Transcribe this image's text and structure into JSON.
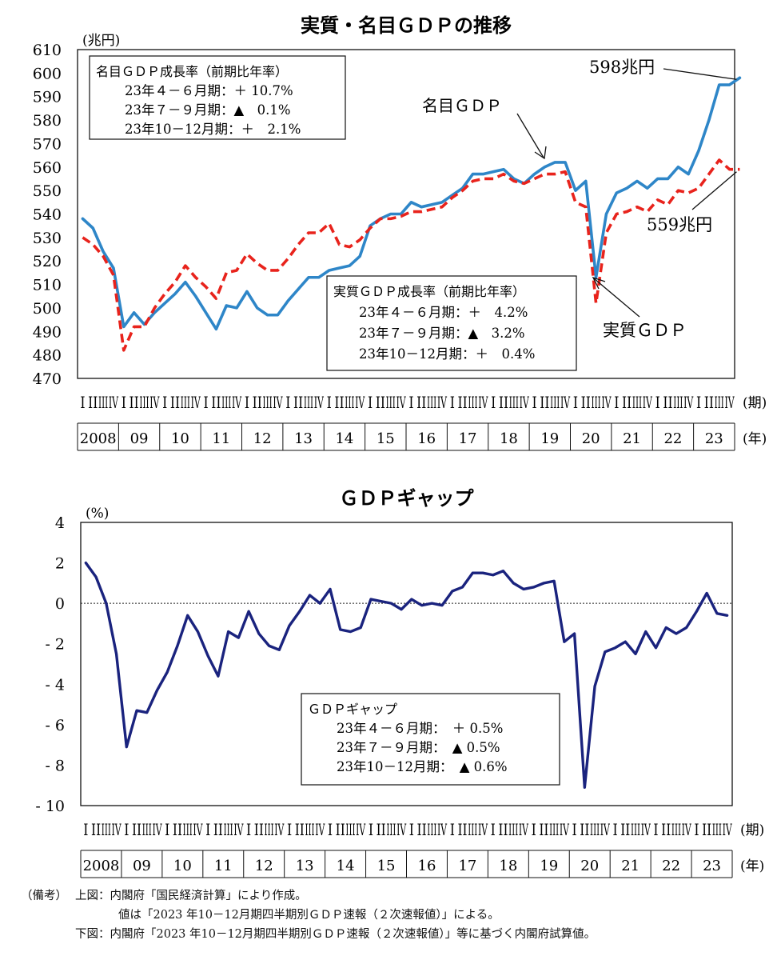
{
  "chart_data": [
    {
      "type": "line",
      "title": "実質・名目ＧＤＰの推移",
      "ylabel": "(兆円)",
      "ylim": [
        470,
        610
      ],
      "yticks": [
        470,
        480,
        490,
        500,
        510,
        520,
        530,
        540,
        550,
        560,
        570,
        580,
        590,
        600,
        610
      ],
      "quarter_row_unit": "(期)",
      "year_row_unit": "(年)",
      "quarter_labels": [
        "I",
        "II",
        "III",
        "IV"
      ],
      "years": [
        "2008",
        "09",
        "10",
        "11",
        "12",
        "13",
        "14",
        "15",
        "16",
        "17",
        "18",
        "19",
        "20",
        "21",
        "22",
        "23"
      ],
      "series": [
        {
          "name": "名目ＧＤＰ",
          "color": "#2e86c8",
          "style": "solid",
          "values": [
            538,
            534,
            524,
            517,
            492,
            498,
            493,
            498,
            502,
            506,
            511,
            505,
            498,
            491,
            501,
            500,
            507,
            500,
            497,
            497,
            503,
            508,
            513,
            513,
            516,
            517,
            518,
            522,
            535,
            538,
            540,
            540,
            545,
            543,
            544,
            545,
            548,
            551,
            557,
            557,
            558,
            559,
            555,
            553,
            557,
            560,
            562,
            562,
            550,
            554,
            513,
            540,
            549,
            551,
            554,
            551,
            555,
            555,
            560,
            557,
            567,
            580,
            595,
            595,
            598
          ]
        },
        {
          "name": "実質ＧＤＰ",
          "color": "#e8231c",
          "style": "dashed",
          "values": [
            530,
            527,
            522,
            514,
            482,
            492,
            492,
            500,
            506,
            511,
            518,
            513,
            509,
            504,
            515,
            516,
            523,
            519,
            516,
            516,
            521,
            527,
            532,
            532,
            536,
            527,
            526,
            529,
            534,
            538,
            538,
            539,
            541,
            541,
            542,
            543,
            547,
            550,
            554,
            555,
            555,
            557,
            554,
            553,
            555,
            557,
            557,
            558,
            545,
            543,
            502,
            532,
            540,
            541,
            543,
            541,
            546,
            544,
            550,
            549,
            551,
            557,
            563,
            559,
            559
          ]
        }
      ],
      "annotations": [
        {
          "key": "nominal_end",
          "text": "598兆円"
        },
        {
          "key": "nominal_line",
          "text": "名目ＧＤＰ"
        },
        {
          "key": "real_end",
          "text": "559兆円"
        },
        {
          "key": "real_line",
          "text": "実質ＧＤＰ"
        }
      ],
      "legend_boxes": [
        {
          "key": "nominal",
          "header": "名目ＧＤＰ成長率（前期比年率）",
          "rows": [
            "23年４－６月期：＋ 10.7%",
            "23年７－９月期：▲　0.1%",
            "23年10－12月期：＋　2.1%"
          ]
        },
        {
          "key": "real",
          "header": "実質ＧＤＰ成長率（前期比年率）",
          "rows": [
            "23年４－６月期：＋　4.2%",
            "23年７－９月期：▲　3.2%",
            "23年10－12月期：＋　0.4%"
          ]
        }
      ]
    },
    {
      "type": "line",
      "title": "ＧＤＰギャップ",
      "ylabel": "(%)",
      "ylim": [
        -10,
        4
      ],
      "yticks": [
        -10,
        -8,
        -6,
        -4,
        -2,
        0,
        2,
        4
      ],
      "ytick_labels": [
        "- 10",
        "- 8",
        "- 6",
        "- 4",
        "- 2",
        "0",
        "2",
        "4"
      ],
      "quarter_row_unit": "(期)",
      "year_row_unit": "(年)",
      "quarter_labels": [
        "I",
        "II",
        "III",
        "IV"
      ],
      "years": [
        "2008",
        "09",
        "10",
        "11",
        "12",
        "13",
        "14",
        "15",
        "16",
        "17",
        "18",
        "19",
        "20",
        "21",
        "22",
        "23"
      ],
      "series": [
        {
          "color": "#1a237e",
          "values": [
            2.0,
            1.3,
            0.0,
            -2.5,
            -7.1,
            -5.3,
            -5.4,
            -4.3,
            -3.4,
            -2.1,
            -0.6,
            -1.4,
            -2.6,
            -3.6,
            -1.4,
            -1.7,
            -0.4,
            -1.5,
            -2.1,
            -2.3,
            -1.1,
            -0.4,
            0.4,
            0.0,
            0.7,
            -1.3,
            -1.4,
            -1.2,
            0.2,
            0.1,
            0.0,
            -0.3,
            0.2,
            -0.1,
            0.0,
            -0.1,
            0.6,
            0.8,
            1.5,
            1.5,
            1.4,
            1.6,
            1.0,
            0.7,
            0.8,
            1.0,
            1.1,
            -1.9,
            -1.5,
            -9.1,
            -4.1,
            -2.4,
            -2.2,
            -1.9,
            -2.5,
            -1.4,
            -2.2,
            -1.2,
            -1.5,
            -1.2,
            -0.4,
            0.5,
            -0.5,
            -0.6
          ]
        }
      ],
      "legend_boxes": [
        {
          "key": "gap",
          "header": "ＧＤＰギャップ",
          "rows": [
            "23年４－６月期：　＋ 0.5%",
            "23年７－９月期：　▲ 0.5%",
            "23年10－12月期：　▲ 0.6%"
          ]
        }
      ]
    }
  ],
  "notes": {
    "label": "（備考）",
    "line1": "上図：内閣府「国民経済計算」により作成。",
    "line2": "値は「2023 年10－12月期四半期別ＧＤＰ速報（２次速報値）」による。",
    "line3": "下図：内閣府「2023 年10－12月期四半期別ＧＤＰ速報（２次速報値）」等に基づく内閣府試算値。"
  }
}
